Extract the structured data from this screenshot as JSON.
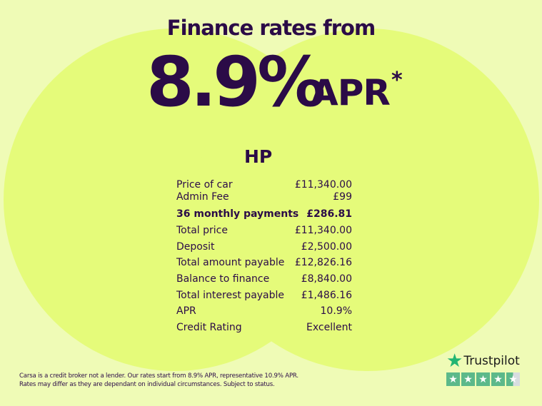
{
  "headline": "Finance rates from",
  "rate": "8.9%",
  "rate_suffix": "APR",
  "asterisk": "*",
  "product": "HP",
  "rows": [
    {
      "label": "Price of car",
      "value": "£11,340.00"
    },
    {
      "label": "Admin Fee",
      "value": "£99"
    },
    {
      "label": "36 monthly payments",
      "value": "£286.81"
    },
    {
      "label": "Total price",
      "value": "£11,340.00"
    },
    {
      "label": "Deposit",
      "value": "£2,500.00"
    },
    {
      "label": "Total amount payable",
      "value": "£12,826.16"
    },
    {
      "label": "Balance to finance",
      "value": "£8,840.00"
    },
    {
      "label": "Total interest payable",
      "value": "£1,486.16"
    },
    {
      "label": "APR",
      "value": "10.9%"
    },
    {
      "label": "Credit Rating",
      "value": "Excellent"
    }
  ],
  "disclaimer": {
    "line1": "Carsa is a credit broker not a lender. Our rates start from 8.9% APR, representative 10.9% APR.",
    "line2": "Rates may differ as they are dependant on individual circumstances. Subject to status."
  },
  "trustpilot": {
    "name": "Trustpilot",
    "rating_stars": 4.5,
    "star_icon": "star-icon"
  },
  "colors": {
    "text": "#2b0b47",
    "background": "#effbb6",
    "circle": "#e5fb7a",
    "trustpilot_green": "#5cb98a"
  }
}
